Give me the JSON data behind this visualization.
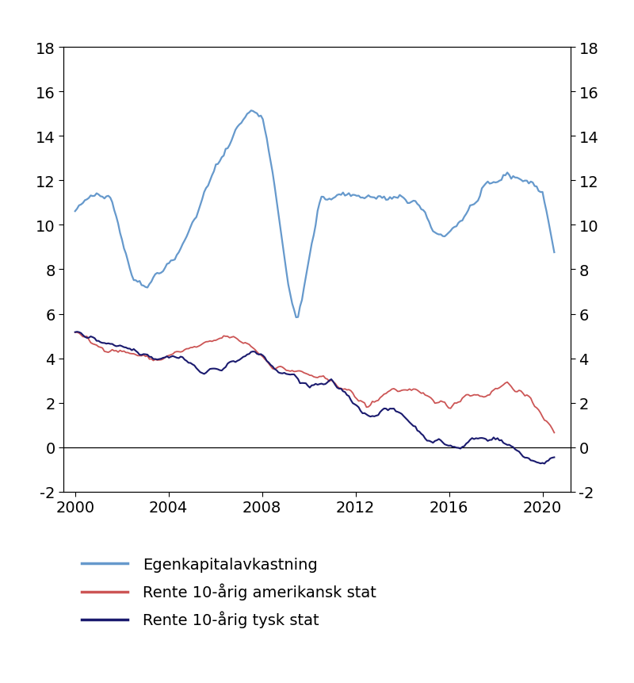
{
  "title": "",
  "ylim": [
    -2,
    18
  ],
  "xlim": [
    1999.5,
    2021.2
  ],
  "yticks": [
    -2,
    0,
    2,
    4,
    6,
    8,
    10,
    12,
    14,
    16,
    18
  ],
  "xticks": [
    2000,
    2004,
    2008,
    2012,
    2016,
    2020
  ],
  "color_roe": "#6699cc",
  "color_us": "#cc5555",
  "color_de": "#1a1a6e",
  "legend_labels": [
    "Egenkapitalavkastning",
    "Rente 10-årig amerikansk stat",
    "Rente 10-årig tysk stat"
  ],
  "background_color": "#ffffff",
  "roe_kp_t": [
    2000.0,
    2001.0,
    2001.5,
    2002.5,
    2003.0,
    2004.5,
    2006.0,
    2007.0,
    2007.5,
    2008.0,
    2008.5,
    2009.0,
    2009.5,
    2010.5,
    2011.5,
    2013.0,
    2014.5,
    2015.5,
    2016.0,
    2016.5,
    2017.5,
    2018.5,
    2019.3,
    2020.0,
    2020.5
  ],
  "roe_kp_v": [
    10.6,
    11.5,
    11.4,
    7.5,
    7.3,
    8.8,
    12.5,
    14.5,
    15.1,
    15.0,
    12.2,
    8.0,
    5.5,
    11.2,
    11.4,
    11.2,
    11.1,
    9.5,
    9.7,
    10.2,
    11.5,
    12.3,
    12.0,
    11.5,
    8.8
  ],
  "us_kp_t": [
    2000.0,
    2001.0,
    2002.5,
    2003.5,
    2004.5,
    2005.5,
    2006.5,
    2007.5,
    2008.5,
    2009.5,
    2010.5,
    2011.5,
    2012.5,
    2013.5,
    2014.5,
    2015.5,
    2016.0,
    2016.8,
    2017.5,
    2018.5,
    2019.0,
    2019.8,
    2020.5
  ],
  "us_kp_v": [
    5.2,
    4.5,
    4.2,
    3.9,
    4.3,
    4.6,
    5.0,
    4.6,
    3.6,
    3.4,
    3.1,
    2.7,
    1.8,
    2.6,
    2.5,
    2.1,
    1.8,
    2.4,
    2.3,
    2.9,
    2.5,
    1.8,
    0.6
  ],
  "de_kp_t": [
    2000.0,
    2001.0,
    2002.5,
    2003.5,
    2004.5,
    2005.5,
    2006.5,
    2007.5,
    2008.0,
    2008.5,
    2009.5,
    2010.0,
    2011.0,
    2011.5,
    2012.5,
    2013.5,
    2014.0,
    2015.0,
    2016.0,
    2016.5,
    2017.0,
    2018.0,
    2019.0,
    2019.5,
    2020.0,
    2020.5
  ],
  "de_kp_v": [
    5.2,
    4.8,
    4.4,
    4.0,
    4.1,
    3.3,
    3.7,
    4.2,
    4.2,
    3.5,
    3.1,
    2.7,
    2.9,
    2.5,
    1.4,
    1.7,
    1.5,
    0.4,
    0.1,
    -0.1,
    0.4,
    0.4,
    -0.2,
    -0.6,
    -0.7,
    -0.5
  ]
}
